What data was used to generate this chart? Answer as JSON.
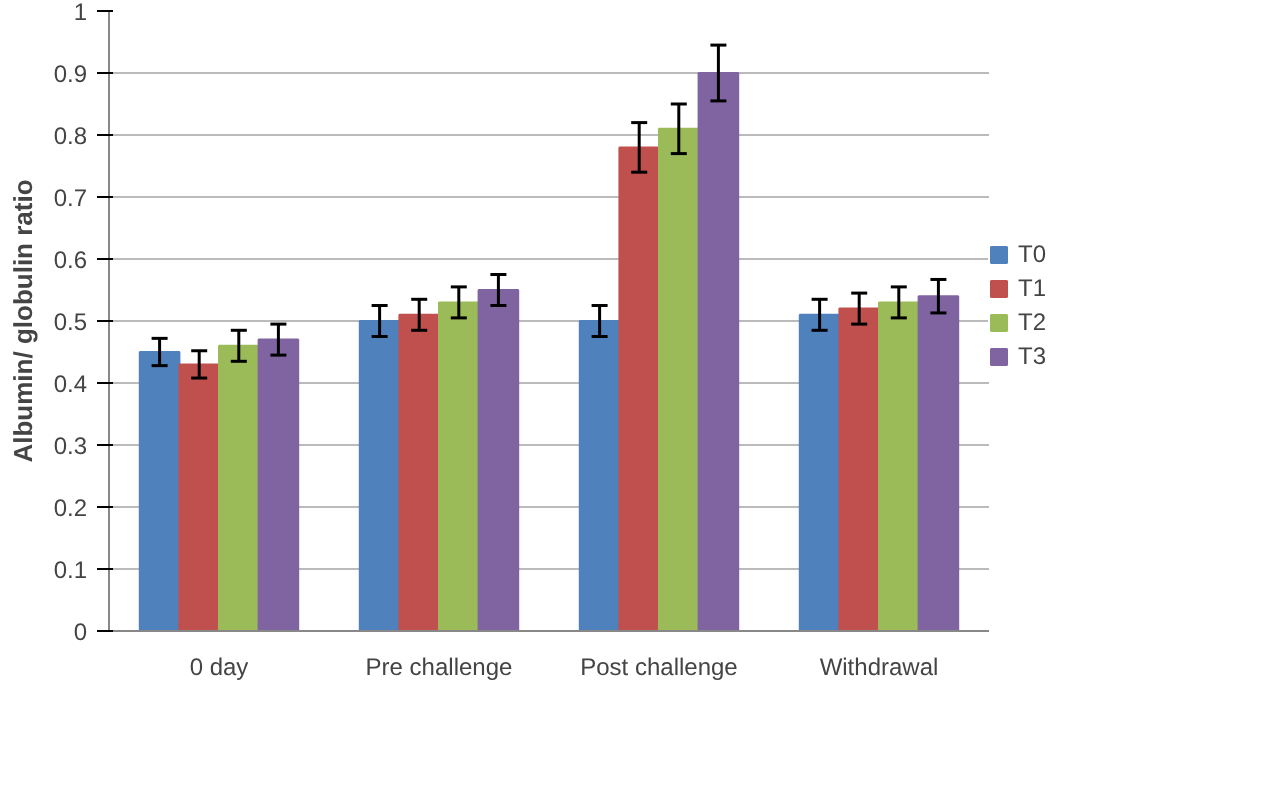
{
  "chart_data": {
    "type": "bar",
    "ylabel": "Albumin/ globulin ratio",
    "categories": [
      "0 day",
      "Pre challenge",
      "Post challenge",
      "Withdrawal"
    ],
    "series": [
      {
        "name": "T0",
        "color": "#4f81bd",
        "values": [
          0.45,
          0.5,
          0.5,
          0.51
        ],
        "errors": [
          0.022,
          0.025,
          0.025,
          0.025
        ]
      },
      {
        "name": "T1",
        "color": "#c0504d",
        "values": [
          0.43,
          0.51,
          0.78,
          0.52
        ],
        "errors": [
          0.022,
          0.025,
          0.04,
          0.025
        ]
      },
      {
        "name": "T2",
        "color": "#9bbb59",
        "values": [
          0.46,
          0.53,
          0.81,
          0.53
        ],
        "errors": [
          0.025,
          0.025,
          0.04,
          0.025
        ]
      },
      {
        "name": "T3",
        "color": "#8064a2",
        "values": [
          0.47,
          0.55,
          0.9,
          0.54
        ],
        "errors": [
          0.025,
          0.025,
          0.045,
          0.027
        ]
      }
    ],
    "ylim": [
      0,
      1
    ],
    "yticks": [
      0,
      0.1,
      0.2,
      0.3,
      0.4,
      0.5,
      0.6,
      0.7,
      0.8,
      0.9,
      1
    ],
    "grid": "y",
    "legend": "right"
  }
}
